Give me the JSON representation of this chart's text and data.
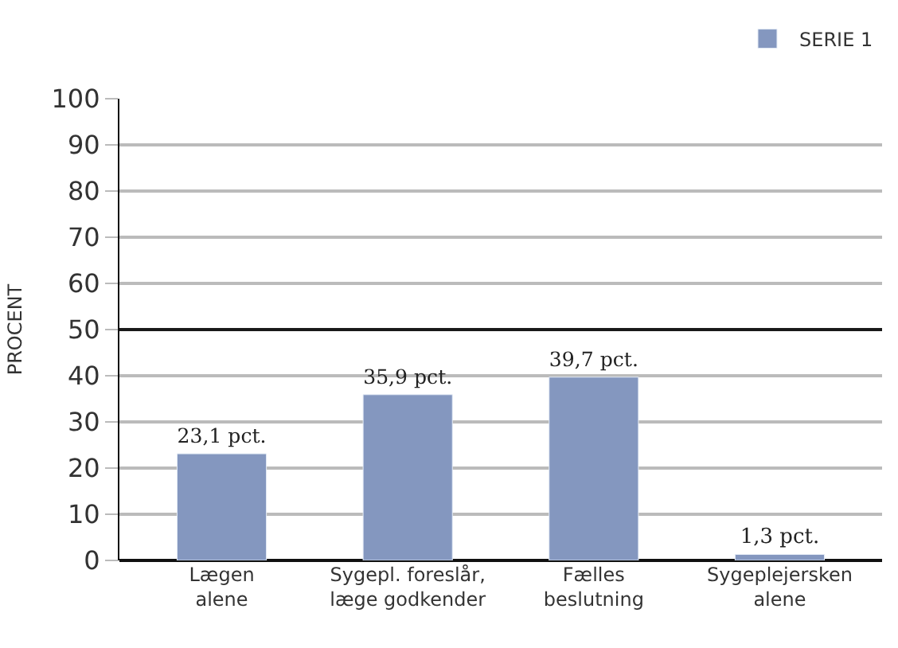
{
  "chart_data": {
    "type": "bar",
    "ylabel": "PROCENT",
    "categories": [
      "Lægen\nalene",
      "Sygepl. foreslår,\nlæge godkender",
      "Fælles\nbeslutning",
      "Sygeplejersken\nalene"
    ],
    "series": [
      {
        "name": "SERIE 1",
        "color": "#8497bf",
        "values": [
          23.1,
          35.9,
          39.7,
          1.3
        ],
        "value_labels": [
          "23,1 pct.",
          "35,9 pct.",
          "39,7 pct.",
          "1,3 pct."
        ]
      }
    ],
    "ylim": [
      0,
      100
    ],
    "yticks": [
      0,
      10,
      20,
      30,
      40,
      50,
      60,
      70,
      80,
      90,
      100
    ],
    "ref_lines": [
      {
        "axis": "y",
        "value": 50,
        "label": null,
        "color": "#1a1a1a"
      }
    ],
    "grid": "y",
    "legend": "top right"
  }
}
